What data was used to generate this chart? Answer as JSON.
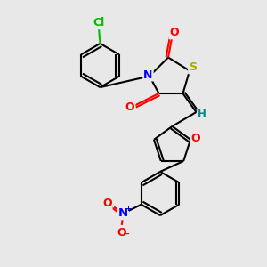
{
  "bg_color": "#e8e8e8",
  "bond_color": "#000000",
  "atom_colors": {
    "Cl": "#00bb00",
    "N": "#0000ff",
    "O": "#ff0000",
    "S": "#aaaa00",
    "H": "#008888",
    "C": "#000000"
  },
  "figsize": [
    3.0,
    3.0
  ],
  "dpi": 100
}
